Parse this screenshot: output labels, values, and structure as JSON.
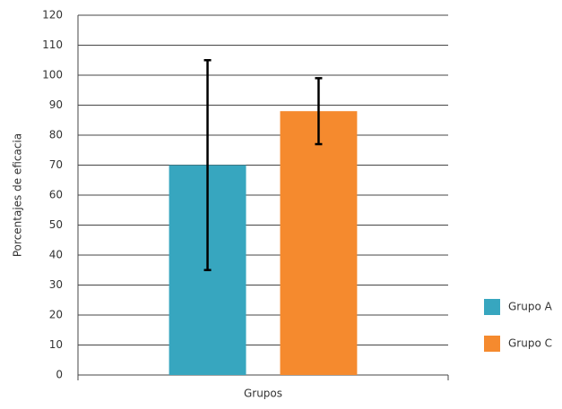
{
  "chart_data": {
    "type": "bar",
    "ylabel": "Porcentajes de eficacia",
    "categories": [
      "Grupos"
    ],
    "series": [
      {
        "name": "Grupo A",
        "color": "#37a6bf",
        "values": [
          70
        ],
        "errors": [
          35
        ]
      },
      {
        "name": "Grupo C",
        "color": "#f58a2e",
        "values": [
          88
        ],
        "errors": [
          11
        ]
      }
    ],
    "ylim": [
      0,
      120
    ],
    "yticks": [
      0,
      10,
      20,
      30,
      40,
      50,
      60,
      70,
      80,
      90,
      100,
      110,
      120
    ],
    "grid": true,
    "legend": "right"
  }
}
